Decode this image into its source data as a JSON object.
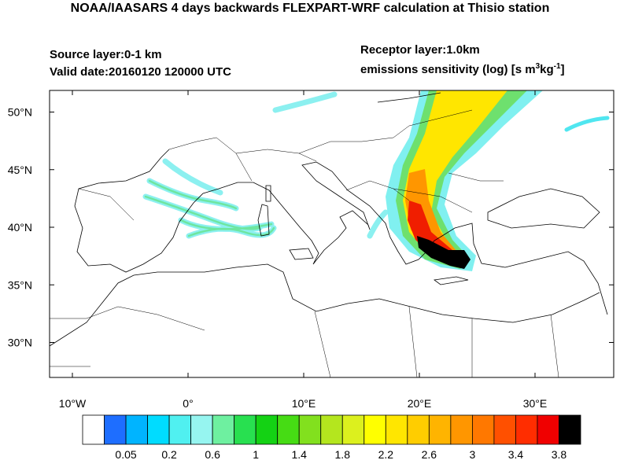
{
  "header": {
    "title": "NOAA/IAASARS 4 days backwards FLEXPART-WRF calculation at Thisio station",
    "source_layer": "Source layer:0-1 km",
    "valid_date": "Valid date:20160120 120000 UTC",
    "receptor_layer": "Receptor layer:1.0km",
    "units_label": {
      "text": "emissions sensitivity (log) [s m",
      "sup1": "3",
      "mid": "kg",
      "sup2": "-1",
      "end": "]"
    }
  },
  "map": {
    "lon_ticks": [
      {
        "value": -10,
        "label": "10°W"
      },
      {
        "value": 0,
        "label": "0°"
      },
      {
        "value": 10,
        "label": "10°E"
      },
      {
        "value": 20,
        "label": "20°E"
      },
      {
        "value": 30,
        "label": "30°E"
      }
    ],
    "lat_ticks": [
      {
        "value": 30,
        "label": "30°N"
      },
      {
        "value": 35,
        "label": "35°N"
      },
      {
        "value": 40,
        "label": "40°N"
      },
      {
        "value": 45,
        "label": "45°N"
      },
      {
        "value": 50,
        "label": "50°N"
      }
    ]
  },
  "colorbar": {
    "colors": [
      "#ffffff",
      "#1e6eff",
      "#00b4ff",
      "#00dcff",
      "#50f0f0",
      "#96f5f0",
      "#6ef0a0",
      "#28e050",
      "#14d214",
      "#46dc14",
      "#82e01e",
      "#b4e61e",
      "#dcf01e",
      "#ffff00",
      "#ffe600",
      "#ffcd00",
      "#ffb400",
      "#ff9600",
      "#ff7800",
      "#ff5000",
      "#ff2d00",
      "#f00000",
      "#000000"
    ],
    "labels": [
      0.05,
      0.2,
      0.6,
      1,
      1.4,
      1.8,
      2.2,
      2.6,
      3,
      3.4,
      3.8
    ]
  }
}
